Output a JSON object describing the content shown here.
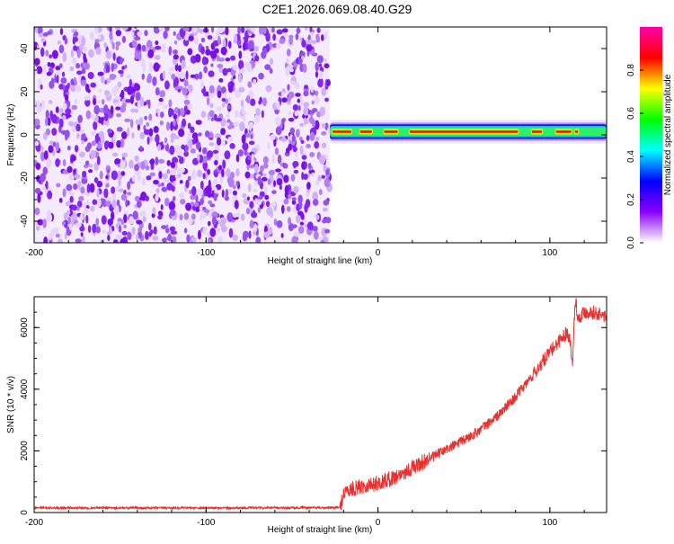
{
  "title": "C2E1.2026.069.08.40.G29",
  "chart_data": [
    {
      "type": "heatmap",
      "xlabel": "Height of straight line (km)",
      "ylabel": "Frequency (Hz)",
      "xlim": [
        -200,
        133
      ],
      "ylim": [
        -50,
        50
      ],
      "xticks": [
        -200,
        -100,
        0,
        100
      ],
      "yticks": [
        -40,
        -20,
        0,
        20,
        40
      ],
      "noise_region_x": [
        -200,
        -28
      ],
      "signal_band": {
        "x_range": [
          -28,
          133
        ],
        "center_frequency": 1.5,
        "half_width": 2.5,
        "strong_segments": [
          [
            -27,
            -15
          ],
          [
            -11,
            -3
          ],
          [
            3,
            12
          ],
          [
            18,
            82
          ],
          [
            89,
            96
          ],
          [
            103,
            113
          ],
          [
            114,
            117
          ]
        ]
      },
      "colorbar": {
        "label": "Normalized spectral amplitude",
        "range": [
          0,
          1
        ],
        "ticks": [
          0.0,
          0.2,
          0.4,
          0.6,
          0.8
        ],
        "colormap": [
          "#ffffff",
          "#8a00ff",
          "#0000ff",
          "#00ffff",
          "#00ff00",
          "#ffff00",
          "#ff0000",
          "#ff00aa"
        ]
      }
    },
    {
      "type": "line",
      "xlabel": "Height of straight line (km)",
      "ylabel": "SNR (10 * v/v)",
      "xlim": [
        -200,
        133
      ],
      "ylim": [
        0,
        7000
      ],
      "xticks": [
        -200,
        -100,
        0,
        100
      ],
      "yticks": [
        0,
        2000,
        4000,
        6000
      ],
      "series": [
        {
          "color": "#e8312f",
          "x": [
            -200,
            -150,
            -100,
            -50,
            -22,
            -20,
            -15,
            -10,
            -5,
            0,
            5,
            10,
            15,
            20,
            30,
            40,
            50,
            60,
            70,
            80,
            90,
            100,
            105,
            110,
            112,
            113,
            114,
            115,
            116,
            118,
            120,
            125,
            130,
            133
          ],
          "y": [
            150,
            150,
            150,
            150,
            160,
            650,
            750,
            850,
            900,
            950,
            1050,
            1150,
            1300,
            1450,
            1750,
            2050,
            2350,
            2700,
            3150,
            3750,
            4450,
            5200,
            5550,
            5850,
            5600,
            4700,
            6000,
            7000,
            6300,
            6400,
            6500,
            6500,
            6400,
            6350
          ]
        }
      ]
    }
  ]
}
